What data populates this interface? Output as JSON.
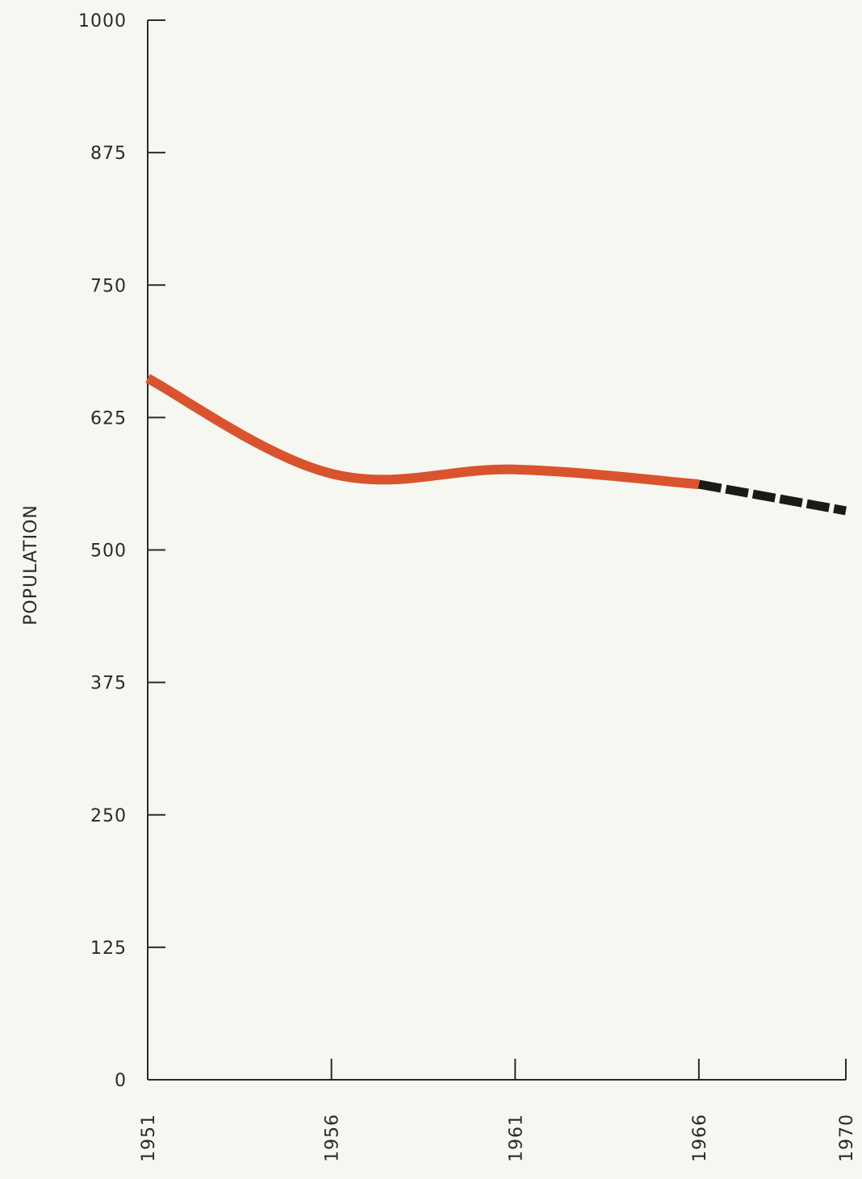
{
  "chart_data": {
    "type": "line",
    "title": "",
    "xlabel": "",
    "ylabel": "POPULATION",
    "ylim": [
      0,
      1000
    ],
    "yticks": [
      0,
      125,
      250,
      375,
      500,
      625,
      750,
      875,
      1000
    ],
    "ytick_labels": [
      "0",
      "125",
      "250",
      "375",
      "500",
      "625",
      "750",
      "875",
      "1000"
    ],
    "xlim": [
      1951,
      1970
    ],
    "xticks": [
      1951,
      1956,
      1961,
      1966,
      1970
    ],
    "xtick_labels": [
      "1951",
      "1956",
      "1961",
      "1966",
      "1970"
    ],
    "grid": false,
    "series": [
      {
        "style": "solid",
        "color": "#d9542e",
        "x": [
          1951,
          1956,
          1961,
          1966
        ],
        "values": [
          662,
          572,
          576,
          562
        ]
      },
      {
        "style": "dashed",
        "color": "#1a1a1a",
        "x": [
          1966,
          1970
        ],
        "values": [
          562,
          537
        ]
      }
    ]
  }
}
